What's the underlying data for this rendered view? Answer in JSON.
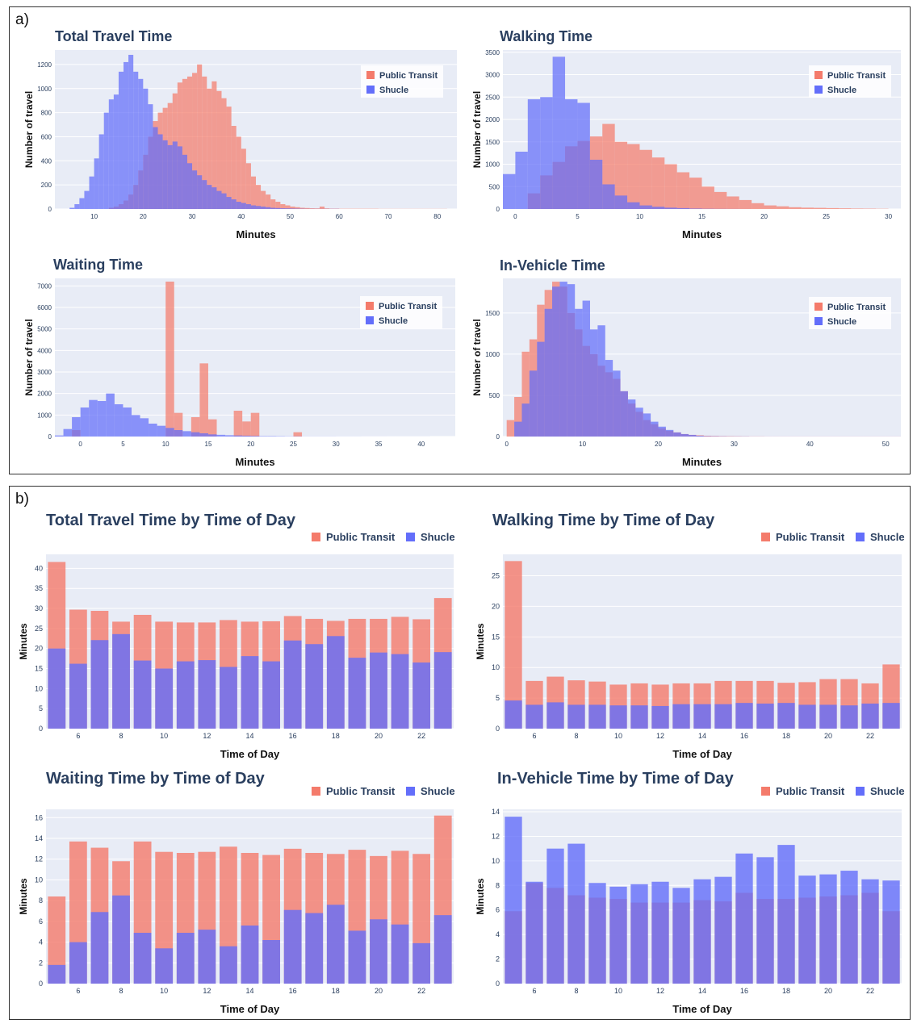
{
  "panels": {
    "a": "a)",
    "b": "b)"
  },
  "colors": {
    "transit": "#f47b6b",
    "shucle": "#636efa",
    "plot_bg": "#e8ecf6",
    "title": "#2a3f5f"
  },
  "legend_labels": {
    "transit": "Public Transit",
    "shucle": "Shucle"
  },
  "chart_data": [
    {
      "id": "total_travel_hist",
      "type": "bar",
      "title": "Total Travel Time",
      "xlabel": "Minutes",
      "ylabel": "Number of travel",
      "bin_start": 3,
      "bin_width": 1,
      "xlim": [
        2,
        84
      ],
      "ylim": [
        0,
        1320
      ],
      "xticks": [
        10,
        20,
        30,
        40,
        50,
        60,
        70,
        80
      ],
      "yticks": [
        0,
        200,
        400,
        600,
        800,
        1000,
        1200
      ],
      "series": [
        {
          "name": "Public Transit",
          "values": [
            0,
            0,
            0,
            0,
            0,
            0,
            0,
            0,
            0,
            0,
            10,
            20,
            40,
            70,
            120,
            200,
            320,
            450,
            600,
            730,
            800,
            840,
            880,
            960,
            1050,
            1080,
            1100,
            1130,
            1200,
            1100,
            1000,
            1060,
            980,
            920,
            850,
            690,
            600,
            500,
            380,
            270,
            200,
            150,
            120,
            80,
            60,
            40,
            30,
            20,
            15,
            10,
            8,
            6,
            5,
            20,
            5,
            3,
            3,
            2,
            2,
            2,
            2,
            2,
            2,
            2,
            2,
            1,
            1,
            1,
            1,
            1,
            1,
            1,
            1,
            1,
            1,
            1,
            1,
            1,
            1
          ]
        },
        {
          "name": "Shucle",
          "values": [
            0,
            0,
            10,
            40,
            90,
            150,
            270,
            420,
            620,
            800,
            910,
            950,
            1140,
            1220,
            1280,
            1140,
            1080,
            1000,
            870,
            680,
            620,
            570,
            530,
            560,
            520,
            450,
            380,
            320,
            280,
            240,
            200,
            180,
            150,
            130,
            100,
            80,
            60,
            50,
            40,
            30,
            25,
            20,
            15,
            10,
            8,
            6,
            5,
            4,
            3,
            2,
            1,
            1,
            1,
            1,
            1,
            1,
            1,
            0,
            0,
            0,
            0,
            0,
            0,
            0,
            0,
            0,
            0,
            0,
            0,
            0,
            0,
            0,
            0,
            0,
            0,
            0,
            0,
            0,
            0
          ]
        }
      ]
    },
    {
      "id": "walking_hist",
      "type": "bar",
      "title": "Walking Time",
      "xlabel": "Minutes",
      "ylabel": "Number of travel",
      "bin_start": -1,
      "bin_width": 1,
      "xlim": [
        -1,
        31
      ],
      "ylim": [
        0,
        3550
      ],
      "xticks": [
        0,
        5,
        10,
        15,
        20,
        25,
        30
      ],
      "yticks": [
        0,
        500,
        1000,
        1500,
        2000,
        2500,
        3000,
        3500
      ],
      "series": [
        {
          "name": "Public Transit",
          "values": [
            0,
            0,
            350,
            750,
            1050,
            1400,
            1520,
            1620,
            1900,
            1500,
            1450,
            1320,
            1150,
            1000,
            820,
            700,
            500,
            380,
            280,
            200,
            130,
            80,
            60,
            40,
            30,
            25,
            20,
            15,
            10,
            8,
            5
          ]
        },
        {
          "name": "Shucle",
          "values": [
            780,
            1280,
            2450,
            2500,
            3400,
            2450,
            2370,
            1100,
            550,
            300,
            150,
            80,
            50,
            30,
            20,
            10,
            5,
            3,
            2,
            1,
            0,
            0,
            0,
            0,
            0,
            0,
            0,
            0,
            0,
            0,
            0
          ]
        }
      ]
    },
    {
      "id": "waiting_hist",
      "type": "bar",
      "title": "Waiting Time",
      "xlabel": "Minutes",
      "ylabel": "Number of travel",
      "bin_start": -3,
      "bin_width": 1,
      "xlim": [
        -3,
        44
      ],
      "ylim": [
        0,
        7350
      ],
      "xticks": [
        0,
        5,
        10,
        15,
        20,
        25,
        30,
        35,
        40
      ],
      "yticks": [
        0,
        1000,
        2000,
        3000,
        4000,
        5000,
        6000,
        7000
      ],
      "series": [
        {
          "name": "Public Transit",
          "values": [
            0,
            0,
            300,
            0,
            0,
            0,
            0,
            0,
            0,
            0,
            0,
            0,
            0,
            7200,
            1100,
            0,
            900,
            3400,
            800,
            0,
            0,
            1200,
            700,
            1100,
            0,
            0,
            0,
            0,
            200,
            0,
            0,
            0,
            0,
            0,
            0,
            0,
            0,
            0,
            0,
            0,
            0,
            0,
            0,
            0,
            0,
            0,
            0
          ]
        },
        {
          "name": "Shucle",
          "values": [
            50,
            350,
            900,
            1350,
            1700,
            1650,
            2000,
            1500,
            1350,
            1000,
            850,
            600,
            500,
            400,
            300,
            250,
            200,
            150,
            100,
            80,
            60,
            50,
            40,
            30,
            20,
            20,
            15,
            10,
            10,
            5,
            5,
            5,
            5,
            3,
            3,
            3,
            2,
            2,
            2,
            1,
            1,
            1,
            1,
            1,
            0,
            0,
            0
          ]
        }
      ]
    },
    {
      "id": "invehicle_hist",
      "type": "bar",
      "title": "In-Vehicle Time",
      "xlabel": "Minutes",
      "ylabel": "Number of travel",
      "bin_start": 0,
      "bin_width": 1,
      "xlim": [
        -0.5,
        52
      ],
      "ylim": [
        0,
        1920
      ],
      "xticks": [
        0,
        10,
        20,
        30,
        40,
        50
      ],
      "yticks": [
        0,
        500,
        1000,
        1500
      ],
      "series": [
        {
          "name": "Public Transit",
          "values": [
            200,
            480,
            1030,
            1180,
            1600,
            1780,
            1880,
            1820,
            1500,
            1300,
            1100,
            1000,
            860,
            780,
            700,
            550,
            400,
            300,
            200,
            150,
            100,
            70,
            50,
            30,
            20,
            15,
            10,
            8,
            6,
            5,
            4,
            3,
            2,
            2,
            1,
            1,
            1,
            1,
            1,
            1,
            1,
            1,
            1,
            1,
            1,
            1,
            1,
            1,
            1,
            1,
            1,
            1
          ]
        },
        {
          "name": "Shucle",
          "values": [
            0,
            180,
            400,
            800,
            1150,
            1550,
            1820,
            1880,
            1850,
            1550,
            1650,
            1300,
            1350,
            930,
            800,
            550,
            450,
            350,
            280,
            180,
            120,
            80,
            50,
            30,
            20,
            10,
            5,
            4,
            3,
            2,
            2,
            2,
            1,
            1,
            1,
            1,
            1,
            1,
            1,
            1,
            1,
            1,
            1,
            1,
            1,
            1,
            1,
            1,
            1,
            1,
            1,
            1
          ]
        }
      ]
    },
    {
      "id": "total_by_hour",
      "type": "bar",
      "title": "Total Travel Time by Time of Day",
      "xlabel": "Time of Day",
      "ylabel": "Minutes",
      "categories": [
        5,
        6,
        7,
        8,
        9,
        10,
        11,
        12,
        13,
        14,
        15,
        16,
        17,
        18,
        19,
        20,
        21,
        22,
        23
      ],
      "xticks": [
        6,
        8,
        10,
        12,
        14,
        16,
        18,
        20,
        22
      ],
      "ylim": [
        0,
        43.5
      ],
      "yticks": [
        0,
        5,
        10,
        15,
        20,
        25,
        30,
        35,
        40
      ],
      "series": [
        {
          "name": "Public Transit",
          "values": [
            41.6,
            29.7,
            29.4,
            26.7,
            28.4,
            26.7,
            26.5,
            26.5,
            27.1,
            26.7,
            26.8,
            28.1,
            27.4,
            26.9,
            27.4,
            27.4,
            27.9,
            27.3,
            32.6
          ]
        },
        {
          "name": "Shucle",
          "values": [
            20.0,
            16.2,
            22.1,
            23.6,
            17.0,
            15.0,
            16.8,
            17.1,
            15.4,
            18.1,
            16.8,
            22.0,
            21.1,
            23.1,
            17.7,
            19.0,
            18.6,
            16.5,
            19.1
          ]
        }
      ]
    },
    {
      "id": "walking_by_hour",
      "type": "bar",
      "title": "Walking Time by Time of Day",
      "xlabel": "Time of Day",
      "ylabel": "Minutes",
      "categories": [
        5,
        6,
        7,
        8,
        9,
        10,
        11,
        12,
        13,
        14,
        15,
        16,
        17,
        18,
        19,
        20,
        21,
        22,
        23
      ],
      "xticks": [
        6,
        8,
        10,
        12,
        14,
        16,
        18,
        20,
        22
      ],
      "ylim": [
        0,
        28.5
      ],
      "yticks": [
        0,
        5,
        10,
        15,
        20,
        25
      ],
      "series": [
        {
          "name": "Public Transit",
          "values": [
            27.4,
            7.8,
            8.5,
            7.9,
            7.7,
            7.2,
            7.4,
            7.2,
            7.4,
            7.4,
            7.8,
            7.8,
            7.8,
            7.5,
            7.6,
            8.1,
            8.1,
            7.4,
            10.5
          ]
        },
        {
          "name": "Shucle",
          "values": [
            4.6,
            3.9,
            4.3,
            3.9,
            3.9,
            3.8,
            3.8,
            3.7,
            4.0,
            4.0,
            4.0,
            4.2,
            4.1,
            4.2,
            3.9,
            3.9,
            3.8,
            4.1,
            4.2
          ]
        }
      ]
    },
    {
      "id": "waiting_by_hour",
      "type": "bar",
      "title": "Waiting Time by Time of Day",
      "xlabel": "Time of Day",
      "ylabel": "Minutes",
      "categories": [
        5,
        6,
        7,
        8,
        9,
        10,
        11,
        12,
        13,
        14,
        15,
        16,
        17,
        18,
        19,
        20,
        21,
        22,
        23
      ],
      "xticks": [
        6,
        8,
        10,
        12,
        14,
        16,
        18,
        20,
        22
      ],
      "ylim": [
        0,
        16.8
      ],
      "yticks": [
        0,
        2,
        4,
        6,
        8,
        10,
        12,
        14,
        16
      ],
      "series": [
        {
          "name": "Public Transit",
          "values": [
            8.4,
            13.7,
            13.1,
            11.8,
            13.7,
            12.7,
            12.6,
            12.7,
            13.2,
            12.6,
            12.4,
            13.0,
            12.6,
            12.5,
            12.9,
            12.3,
            12.8,
            12.5,
            16.2
          ]
        },
        {
          "name": "Shucle",
          "values": [
            1.8,
            4.0,
            6.9,
            8.5,
            4.9,
            3.4,
            4.9,
            5.2,
            3.6,
            5.6,
            4.2,
            7.1,
            6.8,
            7.6,
            5.1,
            6.2,
            5.7,
            3.9,
            6.6
          ]
        }
      ]
    },
    {
      "id": "invehicle_by_hour",
      "type": "bar",
      "title": "In-Vehicle Time by Time of Day",
      "xlabel": "Time of Day",
      "ylabel": "Minutes",
      "categories": [
        5,
        6,
        7,
        8,
        9,
        10,
        11,
        12,
        13,
        14,
        15,
        16,
        17,
        18,
        19,
        20,
        21,
        22,
        23
      ],
      "xticks": [
        6,
        8,
        10,
        12,
        14,
        16,
        18,
        20,
        22
      ],
      "ylim": [
        0,
        14.2
      ],
      "yticks": [
        0,
        2,
        4,
        6,
        8,
        10,
        12,
        14
      ],
      "series": [
        {
          "name": "Public Transit",
          "values": [
            5.9,
            8.2,
            7.8,
            7.2,
            7.0,
            6.9,
            6.6,
            6.6,
            6.6,
            6.8,
            6.7,
            7.4,
            6.9,
            6.9,
            7.0,
            7.1,
            7.2,
            7.4,
            5.9
          ]
        },
        {
          "name": "Shucle",
          "values": [
            13.6,
            8.3,
            11.0,
            11.4,
            8.2,
            7.9,
            8.1,
            8.3,
            7.8,
            8.5,
            8.7,
            10.6,
            10.3,
            11.3,
            8.8,
            8.9,
            9.2,
            8.5,
            8.4
          ]
        }
      ]
    }
  ]
}
